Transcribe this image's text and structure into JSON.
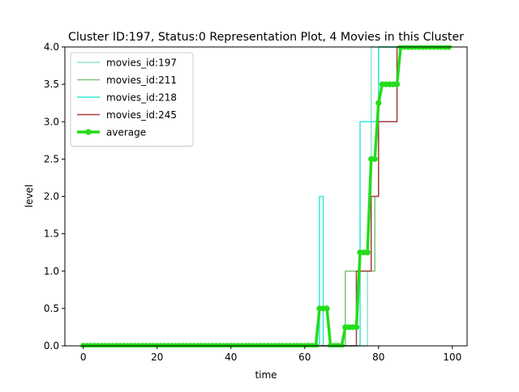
{
  "chart_data": {
    "type": "line",
    "title": "Cluster ID:197, Status:0 Representation Plot, 4 Movies in this Cluster",
    "xlabel": "time",
    "ylabel": "level",
    "xlim": [
      -5,
      104
    ],
    "ylim": [
      0,
      4
    ],
    "xticks": [
      0,
      20,
      40,
      60,
      80,
      100
    ],
    "yticks": [
      0.0,
      0.5,
      1.0,
      1.5,
      2.0,
      2.5,
      3.0,
      3.5,
      4.0
    ],
    "xtick_labels": [
      "0",
      "20",
      "40",
      "60",
      "80",
      "100"
    ],
    "ytick_labels": [
      "0.0",
      "0.5",
      "1.0",
      "1.5",
      "2.0",
      "2.5",
      "3.0",
      "3.5",
      "4.0"
    ],
    "grid": false,
    "legend_position": "upper-left",
    "series": [
      {
        "name": "movies_id:197",
        "color": "#8fe3d4",
        "linewidth": 1.5,
        "marker": "none",
        "step": true,
        "x": [
          0,
          77,
          77,
          78,
          78,
          99
        ],
        "y": [
          0,
          0,
          1,
          1,
          4,
          4
        ]
      },
      {
        "name": "movies_id:211",
        "color": "#7dc47d",
        "linewidth": 1.5,
        "marker": "none",
        "step": true,
        "x": [
          0,
          71,
          71,
          79,
          79,
          80,
          80,
          99
        ],
        "y": [
          0,
          0,
          1,
          1,
          2,
          2,
          4,
          4
        ]
      },
      {
        "name": "movies_id:218",
        "color": "#33e8d6",
        "linewidth": 1.5,
        "marker": "none",
        "step": true,
        "x": [
          0,
          64,
          64,
          65,
          65,
          75,
          75,
          80,
          80,
          99
        ],
        "y": [
          0,
          0,
          2,
          2,
          0,
          0,
          3,
          3,
          4,
          4
        ]
      },
      {
        "name": "movies_id:245",
        "color": "#a83a3a",
        "linewidth": 1.5,
        "marker": "none",
        "step": true,
        "x": [
          0,
          74,
          74,
          78,
          78,
          80,
          80,
          81,
          81,
          85,
          85,
          99
        ],
        "y": [
          0,
          0,
          1,
          1,
          2,
          2,
          3,
          3,
          3,
          3,
          4,
          4
        ]
      },
      {
        "name": "average",
        "color": "#22dd1a",
        "linewidth": 3.5,
        "marker": "circle",
        "step": false,
        "x": [
          0,
          1,
          2,
          3,
          4,
          5,
          6,
          7,
          8,
          9,
          10,
          11,
          12,
          13,
          14,
          15,
          16,
          17,
          18,
          19,
          20,
          21,
          22,
          23,
          24,
          25,
          26,
          27,
          28,
          29,
          30,
          31,
          32,
          33,
          34,
          35,
          36,
          37,
          38,
          39,
          40,
          41,
          42,
          43,
          44,
          45,
          46,
          47,
          48,
          49,
          50,
          51,
          52,
          53,
          54,
          55,
          56,
          57,
          58,
          59,
          60,
          61,
          62,
          63,
          64,
          65,
          66,
          67,
          68,
          69,
          70,
          71,
          72,
          73,
          74,
          75,
          76,
          77,
          78,
          79,
          80,
          81,
          82,
          83,
          84,
          85,
          86,
          87,
          88,
          89,
          90,
          91,
          92,
          93,
          94,
          95,
          96,
          97,
          98,
          99
        ],
        "y": [
          0,
          0,
          0,
          0,
          0,
          0,
          0,
          0,
          0,
          0,
          0,
          0,
          0,
          0,
          0,
          0,
          0,
          0,
          0,
          0,
          0,
          0,
          0,
          0,
          0,
          0,
          0,
          0,
          0,
          0,
          0,
          0,
          0,
          0,
          0,
          0,
          0,
          0,
          0,
          0,
          0,
          0,
          0,
          0,
          0,
          0,
          0,
          0,
          0,
          0,
          0,
          0,
          0,
          0,
          0,
          0,
          0,
          0,
          0,
          0,
          0,
          0,
          0,
          0,
          0.5,
          0.5,
          0.5,
          0,
          0,
          0,
          0,
          0.25,
          0.25,
          0.25,
          0.25,
          1.25,
          1.25,
          1.25,
          2.5,
          2.5,
          3.25,
          3.5,
          3.5,
          3.5,
          3.5,
          3.5,
          4,
          4,
          4,
          4,
          4,
          4,
          4,
          4,
          4,
          4,
          4,
          4,
          4,
          4
        ]
      }
    ]
  }
}
